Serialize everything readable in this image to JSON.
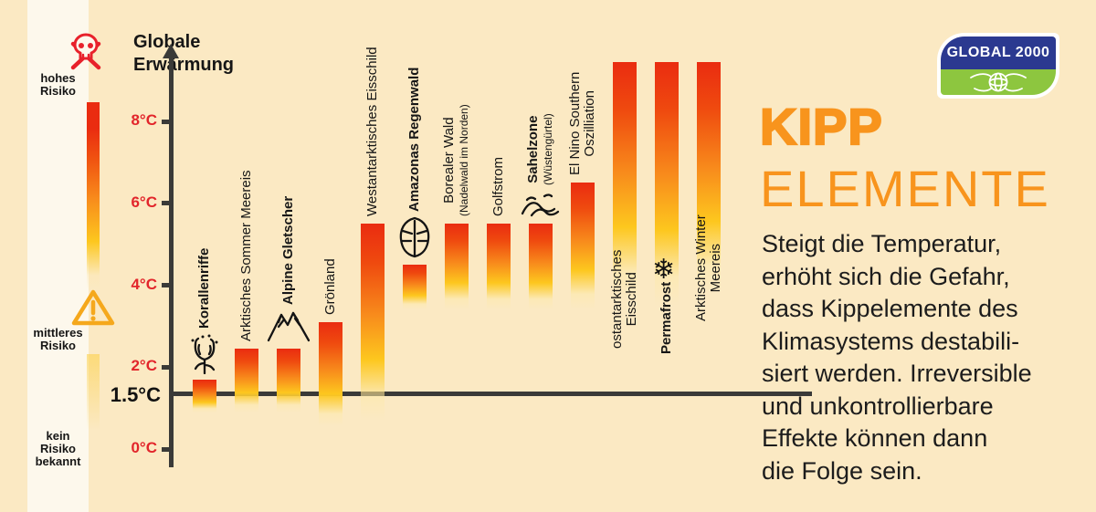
{
  "risk_legend": {
    "high_label": "hohes\nRisiko",
    "medium_label": "mittleres\nRisiko",
    "none_label": "kein\nRisiko\nbekannt",
    "skull_icon": "skull-icon",
    "warning_icon": "warning-triangle-icon"
  },
  "chart_data": {
    "type": "bar",
    "variant": "floating-range-bars-vertical",
    "unit": "°C",
    "ylabel": "Globale Erwärmung",
    "ylabel_lines": "Globale\nErwärmung",
    "ylim": [
      0,
      9.5
    ],
    "grid": false,
    "ticks": [
      {
        "value": 0,
        "label": "0°C"
      },
      {
        "value": 2,
        "label": "2°C"
      },
      {
        "value": 4,
        "label": "4°C"
      },
      {
        "value": 6,
        "label": "6°C"
      },
      {
        "value": 8,
        "label": "8°C"
      }
    ],
    "threshold": {
      "value": 1.5,
      "label": "1.5°C"
    },
    "bars": [
      {
        "id": "korallenriffe",
        "lines": [
          "Korallenriffe"
        ],
        "bold": true,
        "icon": "coral-icon",
        "range": [
          0.9,
          1.7
        ]
      },
      {
        "id": "arktisches-sommer-meereis",
        "lines": [
          "Arktisches Sommer Meereis"
        ],
        "range": [
          0.9,
          2.45
        ]
      },
      {
        "id": "alpine-gletscher",
        "lines": [
          "Alpine Gletscher"
        ],
        "bold": true,
        "icon": "mountain-icon",
        "range": [
          0.9,
          2.45
        ]
      },
      {
        "id": "groenland",
        "lines": [
          "Grönland"
        ],
        "range": [
          0.55,
          3.1
        ]
      },
      {
        "id": "westantarktisches-eisschild",
        "lines": [
          "Westantarktisches Eisschild"
        ],
        "range": [
          0.7,
          5.5
        ]
      },
      {
        "id": "amazonas-regenwald",
        "lines": [
          "Amazonas Regenwald"
        ],
        "bold": true,
        "icon": "leaf-icon",
        "range": [
          3.4,
          4.5
        ]
      },
      {
        "id": "borealer-wald",
        "lines": [
          "Borealer Wald"
        ],
        "sub": "(Nadelwald im Norden)",
        "range": [
          3.4,
          5.5
        ]
      },
      {
        "id": "golfstrom",
        "lines": [
          "Golfstrom"
        ],
        "range": [
          3.4,
          5.5
        ]
      },
      {
        "id": "sahelzone",
        "lines": [
          "Sahelzone"
        ],
        "sub": "(Wüstengürtel)",
        "bold": true,
        "icon": "dunes-icon",
        "range": [
          3.4,
          5.5
        ]
      },
      {
        "id": "el-nino-southern-oszilliation",
        "lines": [
          "El Nino Southern",
          "Oszilliation"
        ],
        "range": [
          3.4,
          6.5
        ]
      },
      {
        "id": "ostantarktisches-eisschild",
        "lines": [
          "ostantarktisches",
          "Eisschild"
        ],
        "range": [
          3.6,
          9.5
        ],
        "off_scale_top": true
      },
      {
        "id": "permafrost",
        "lines": [
          "Permafrost"
        ],
        "bold": true,
        "icon": "snowflake-icon",
        "range": [
          3.5,
          9.5
        ],
        "off_scale_top": true
      },
      {
        "id": "arktisches-winter-meereis",
        "lines": [
          "Arktisches Winter",
          "Meereis"
        ],
        "range": [
          3.8,
          9.5
        ],
        "off_scale_top": true
      }
    ]
  },
  "panel": {
    "logo_text": "GLOBAL 2000",
    "title_line1": "KIPP",
    "title_line2": "ELEMENTE",
    "body": "Steigt die Temperatur,\nerhöht sich die Gefahr,\ndass Kippelemente des\nKlimasystems destabili-\nsiert werden. Irreversible\nund unkontrollierbare\nEffekte können dann\ndie Folge sein."
  },
  "colors": {
    "background": "#fbe9c3",
    "legend_strip": "#fdf8ec",
    "bar_red": "#ea2c10",
    "bar_orange": "#f88d1c",
    "bar_yellow": "#fdc71e",
    "tick_red": "#e2252b",
    "axis_dark": "#3a3a38",
    "title_orange": "#f8941d",
    "logo_blue": "#2b3990",
    "logo_green": "#8dc63f",
    "risk_red": "#e8212b",
    "warning_amber": "#f5a81c"
  }
}
